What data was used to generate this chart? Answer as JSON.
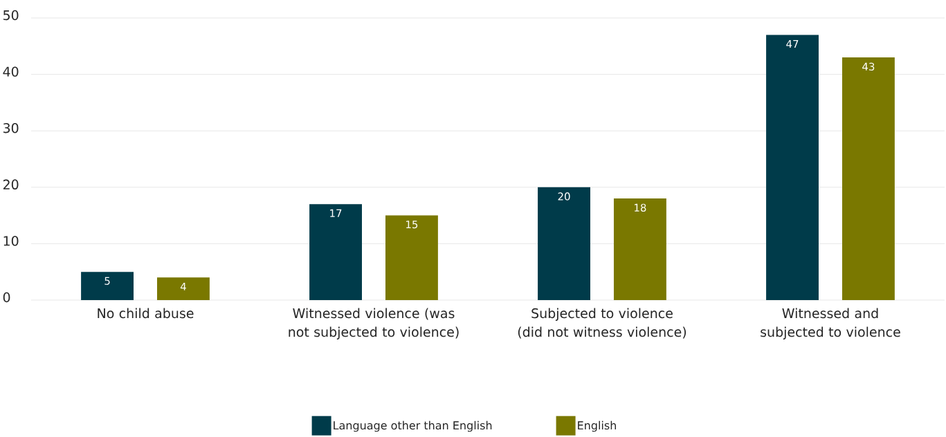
{
  "chart_data": {
    "type": "bar",
    "categories": [
      "No child abuse",
      "Witnessed violence (was not subjected to violence)",
      "Subjected to violence (did not witness violence)",
      "Witnessed and subjected to violence"
    ],
    "series": [
      {
        "name": "Language other than English",
        "color": "#003b4a",
        "values": [
          5,
          17,
          20,
          47
        ]
      },
      {
        "name": "English",
        "color": "#7a7800",
        "values": [
          4,
          15,
          18,
          43
        ]
      }
    ],
    "ylim": [
      0,
      50
    ],
    "yticks": [
      0,
      10,
      20,
      30,
      40,
      50
    ],
    "grid": "y",
    "legend": "bottom",
    "data_labels": true
  }
}
